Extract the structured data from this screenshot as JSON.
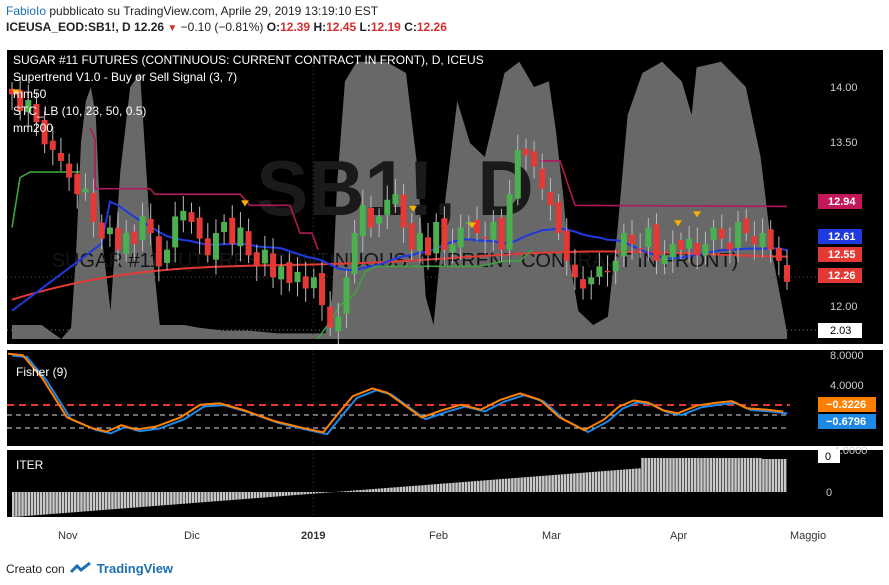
{
  "header": {
    "user": "FabioIo",
    "published": "pubblicato su TradingView.com, Aprile 29, 2019 13:19:10 EST",
    "symbol": "ICEUSA_EOD:SB1!, D",
    "last": "12.26",
    "change": "−0.10 (−0.81%)",
    "o_label": "O:",
    "o": "12.39",
    "h_label": "H:",
    "h": "12.45",
    "l_label": "L:",
    "l": "12.19",
    "c_label": "C:",
    "c": "12.26"
  },
  "main_pane": {
    "title": "SUGAR #11 FUTURES (CONTINUOUS: CURRENT CONTRACT IN FRONT), D, ICEUS",
    "legend": [
      "Supertrend V1.0 - Buy or Sell Signal (3, 7)",
      "mm50",
      "STC_LB (10, 23, 50, 0.5)",
      "mm200"
    ],
    "watermark": "SB1!, D",
    "watermark_sub": "SUGAR #11 FUTURES (CONTINUOUS: CURRENT CONTRACT IN FRONT)",
    "y_ticks": [
      "14.00",
      "13.50",
      "12.00"
    ],
    "price_tags": [
      {
        "text": "12.94",
        "color": "#c2185b",
        "value": 12.94
      },
      {
        "text": "12.61",
        "color": "#1e3ae0",
        "value": 12.61
      },
      {
        "text": "12.55",
        "color": "#e53935",
        "value": 12.55
      },
      {
        "text": "12.26",
        "color": "#e53935",
        "value": 12.26
      },
      {
        "text": "2.03",
        "color": "#ffffff",
        "value": 2.03
      }
    ]
  },
  "fisher_pane": {
    "title": "Fisher (9)",
    "y_ticks": [
      "8.0000",
      "4.0000",
      "-4.0000"
    ],
    "tags": [
      {
        "text": "−0.3226",
        "color": "#ff8000"
      },
      {
        "text": "−0.6796",
        "color": "#1e88e5"
      }
    ]
  },
  "iter_pane": {
    "title": "ITER",
    "y_ticks": [
      "0",
      "0"
    ]
  },
  "x_axis": {
    "labels": [
      "Nov",
      "Dic",
      "2019",
      "Feb",
      "Mar",
      "Apr",
      "Maggio"
    ]
  },
  "footer": {
    "created": "Creato con",
    "brand": "TradingView"
  },
  "chart_data": {
    "type": "candlestick",
    "title": "SUGAR #11 FUTURES (CONTINUOUS: CURRENT CONTRACT IN FRONT), D, ICEUS",
    "x_labels": [
      "Nov",
      "Dic",
      "2019",
      "Feb",
      "Mar",
      "Apr",
      "Maggio"
    ],
    "close_path": [
      13.95,
      13.8,
      13.9,
      13.7,
      13.5,
      13.45,
      13.35,
      13.2,
      13.05,
      13.1,
      12.8,
      12.65,
      12.75,
      12.55,
      12.7,
      12.6,
      12.85,
      12.7,
      12.4,
      12.55,
      12.85,
      12.9,
      12.8,
      12.65,
      12.5,
      12.7,
      12.8,
      12.6,
      12.75,
      12.5,
      12.4,
      12.55,
      12.3,
      12.4,
      12.25,
      12.35,
      12.2,
      12.3,
      12.05,
      11.85,
      11.95,
      12.3,
      12.7,
      12.95,
      12.75,
      12.85,
      13.0,
      13.05,
      12.75,
      12.55,
      12.7,
      12.5,
      12.8,
      12.55,
      12.6,
      12.75,
      12.8,
      12.7,
      12.65,
      12.8,
      12.55,
      13.05,
      13.45,
      13.4,
      13.3,
      13.1,
      12.95,
      12.7,
      12.45,
      12.3,
      12.2,
      12.3,
      12.4,
      12.35,
      12.45,
      12.7,
      12.6,
      12.55,
      12.75,
      12.45,
      12.5,
      12.6,
      12.55,
      12.65,
      12.5,
      12.6,
      12.75,
      12.65,
      12.55,
      12.8,
      12.7,
      12.6,
      12.7,
      12.55,
      12.45,
      12.26
    ],
    "y_range": [
      11.7,
      14.35
    ],
    "price_levels": {
      "supertrend": 12.94,
      "mm50": 12.61,
      "mm200": 12.55,
      "last": 12.26,
      "stc": 2.03
    },
    "fisher_levels": {
      "fisher": -0.3226,
      "trigger": -0.6796
    }
  }
}
